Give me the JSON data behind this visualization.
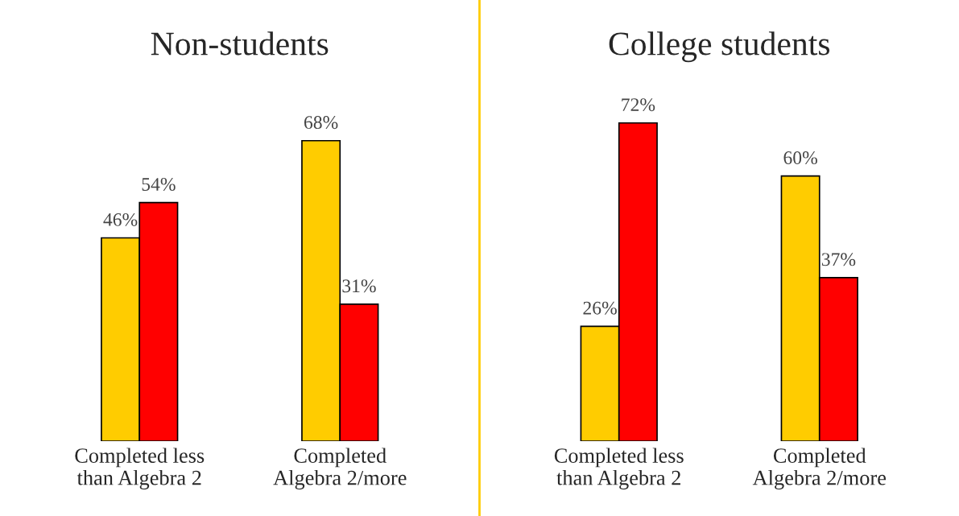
{
  "chart_data": [
    {
      "type": "bar",
      "title": "Non-students",
      "categories": [
        "Completed less\nthan Algebra 2",
        "Completed\nAlgebra 2/more"
      ],
      "tick_labels": "x",
      "grid": false,
      "legend": false,
      "series": [
        {
          "color": "#ffcc00",
          "values": [
            46,
            68
          ],
          "value_labels": [
            "46%",
            "68%"
          ]
        },
        {
          "color": "#ff0000",
          "values": [
            54,
            31
          ],
          "value_labels": [
            "54%",
            "31%"
          ]
        }
      ]
    },
    {
      "type": "bar",
      "title": "College students",
      "categories": [
        "Completed less\nthan Algebra 2",
        "Completed\nAlgebra 2/more"
      ],
      "tick_labels": "x",
      "grid": false,
      "legend": false,
      "series": [
        {
          "color": "#ffcc00",
          "values": [
            26,
            60
          ],
          "value_labels": [
            "26%",
            "60%"
          ]
        },
        {
          "color": "#ff0000",
          "values": [
            72,
            37
          ],
          "value_labels": [
            "72%",
            "37%"
          ]
        }
      ]
    }
  ]
}
